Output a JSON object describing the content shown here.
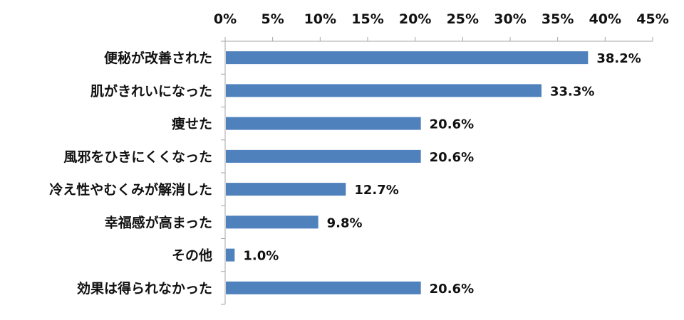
{
  "chart_data": {
    "type": "bar",
    "orientation": "horizontal",
    "categories": [
      "便秘が改善された",
      "肌がきれいになった",
      "痩せた",
      "風邪をひきにくくなった",
      "冷え性やむくみが解消した",
      "幸福感が高まった",
      "その他",
      "効果は得られなかった"
    ],
    "values": [
      38.2,
      33.3,
      20.6,
      20.6,
      12.7,
      9.8,
      1.0,
      20.6
    ],
    "data_labels": [
      "38.2%",
      "33.3%",
      "20.6%",
      "20.6%",
      "12.7%",
      "9.8%",
      "1.0%",
      "20.6%"
    ],
    "xlim": [
      0,
      45
    ],
    "x_ticks": [
      0,
      5,
      10,
      15,
      20,
      25,
      30,
      35,
      40,
      45
    ],
    "x_tick_labels": [
      "0%",
      "5%",
      "10%",
      "15%",
      "20%",
      "25%",
      "30%",
      "35%",
      "40%",
      "45%"
    ],
    "x_axis_position": "top",
    "grid": false,
    "bar_color": "#4f81bd",
    "axis_color": "#a6a6a6"
  }
}
